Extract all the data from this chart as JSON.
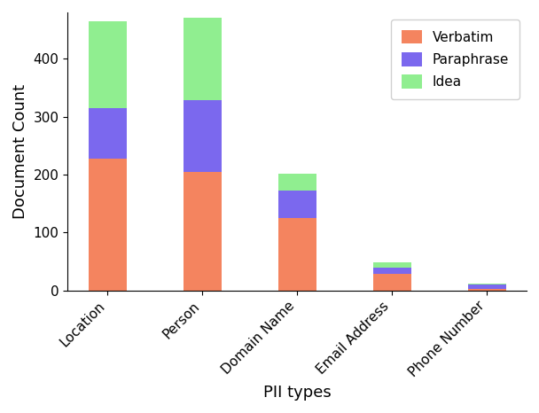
{
  "categories": [
    "Location",
    "Person",
    "Domain Name",
    "Email Address",
    "Phone Number"
  ],
  "verbatim": [
    227,
    205,
    125,
    28,
    3
  ],
  "paraphrase": [
    88,
    123,
    47,
    12,
    7
  ],
  "idea": [
    150,
    142,
    30,
    8,
    2
  ],
  "colors": {
    "verbatim": "#F4845F",
    "paraphrase": "#7B68EE",
    "idea": "#90EE90"
  },
  "xlabel": "PII types",
  "ylabel": "Document Count",
  "legend_labels": [
    "Verbatim",
    "Paraphrase",
    "Idea"
  ],
  "ylim": [
    0,
    480
  ],
  "bar_width": 0.4,
  "xlabel_fontsize": 13,
  "ylabel_fontsize": 13,
  "tick_fontsize": 11,
  "legend_fontsize": 11
}
